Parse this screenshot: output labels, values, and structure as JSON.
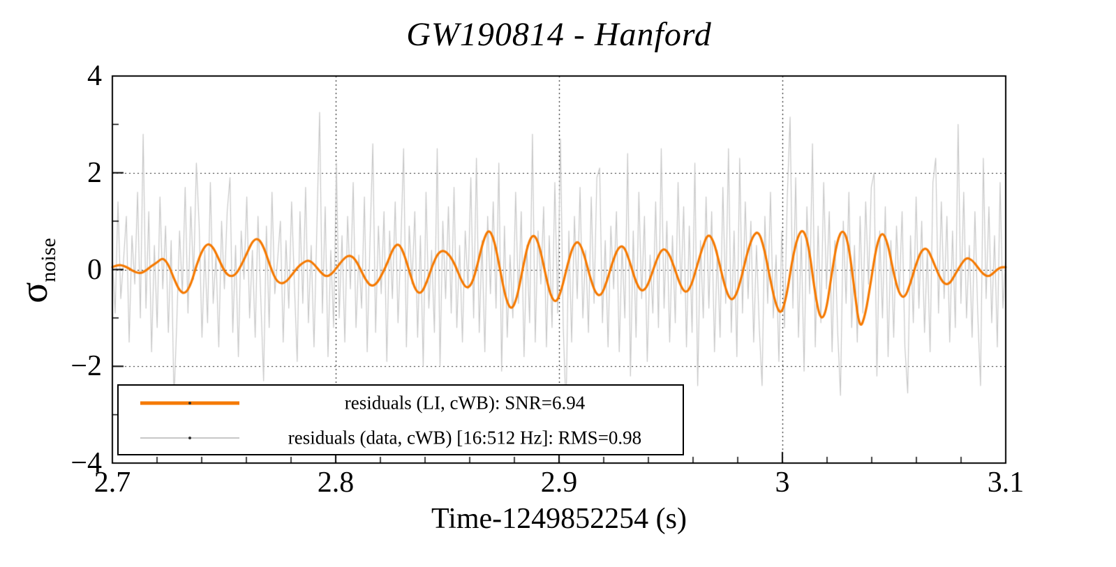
{
  "title": "GW190814 - Hanford",
  "colors": {
    "li_residuals": "#f57900",
    "data_residuals": "#c7c7c7",
    "grid": "#222222",
    "axis": "#000000",
    "background": "#ffffff",
    "legend_marker": "#333333"
  },
  "chart_data": {
    "type": "line",
    "title": "GW190814 - Hanford",
    "xlabel": "Time-1249852254 (s)",
    "ylabel": "σ_noise",
    "ylabel_main": "σ",
    "ylabel_sub": "noise",
    "xlim": [
      2.7,
      3.1
    ],
    "ylim": [
      -4,
      4
    ],
    "x_ticks": {
      "major": [
        2.7,
        2.8,
        2.9,
        3,
        3.1
      ],
      "labels": [
        "2.7",
        "2.8",
        "2.9",
        "3",
        "3.1"
      ],
      "minor_step": 0.02
    },
    "y_ticks": {
      "major": [
        -4,
        -2,
        0,
        2,
        4
      ],
      "labels": [
        "−4",
        "−2",
        "0",
        "2",
        "4"
      ],
      "minor_step": 1
    },
    "grid": {
      "x_at": [
        2.8,
        2.9,
        3
      ],
      "y_at": [
        -2,
        0,
        2
      ],
      "style": "dotted",
      "legend_position": "bottom-left"
    },
    "series": [
      {
        "name": "residuals (LI, cWB): SNR=6.94",
        "color": "#f57900",
        "line_width": 3.2,
        "smooth": true,
        "values": [
          0.05,
          0.1,
          0.08,
          0.02,
          -0.05,
          -0.08,
          -0.02,
          0.08,
          0.15,
          0.25,
          0.1,
          -0.2,
          -0.45,
          -0.5,
          -0.3,
          0.1,
          0.4,
          0.55,
          0.45,
          0.2,
          -0.05,
          -0.15,
          -0.1,
          0.1,
          0.35,
          0.6,
          0.65,
          0.45,
          0.1,
          -0.2,
          -0.3,
          -0.25,
          -0.1,
          0.05,
          0.15,
          0.2,
          0.1,
          -0.05,
          -0.15,
          -0.1,
          0.05,
          0.2,
          0.3,
          0.25,
          0.05,
          -0.2,
          -0.35,
          -0.3,
          -0.1,
          0.15,
          0.45,
          0.55,
          0.3,
          -0.1,
          -0.45,
          -0.5,
          -0.25,
          0.1,
          0.35,
          0.4,
          0.3,
          0.1,
          -0.2,
          -0.4,
          -0.3,
          0.1,
          0.6,
          0.85,
          0.6,
          0.0,
          -0.6,
          -0.85,
          -0.6,
          0.0,
          0.55,
          0.75,
          0.5,
          -0.05,
          -0.55,
          -0.7,
          -0.4,
          0.1,
          0.5,
          0.6,
          0.3,
          -0.15,
          -0.5,
          -0.55,
          -0.25,
          0.15,
          0.45,
          0.5,
          0.2,
          -0.2,
          -0.45,
          -0.4,
          -0.1,
          0.25,
          0.45,
          0.35,
          0.05,
          -0.3,
          -0.5,
          -0.35,
          0.05,
          0.45,
          0.75,
          0.6,
          0.15,
          -0.35,
          -0.65,
          -0.55,
          -0.15,
          0.35,
          0.7,
          0.8,
          0.45,
          -0.15,
          -0.7,
          -0.95,
          -0.55,
          0.2,
          0.7,
          0.85,
          0.45,
          -0.45,
          -1.05,
          -0.9,
          -0.1,
          0.6,
          0.85,
          0.55,
          -0.35,
          -1.25,
          -0.95,
          -0.25,
          0.5,
          0.8,
          0.55,
          -0.05,
          -0.5,
          -0.6,
          -0.3,
          0.1,
          0.4,
          0.45,
          0.2,
          -0.1,
          -0.3,
          -0.3,
          -0.1,
          0.1,
          0.25,
          0.2,
          0.05,
          -0.1,
          -0.15,
          -0.05,
          0.05,
          0.05
        ]
      },
      {
        "name": "residuals (data, cWB) [16:512 Hz]: RMS=0.98",
        "color": "#c7c7c7",
        "line_width": 1.2,
        "smooth": false,
        "values": [
          0.3,
          -0.9,
          1.4,
          -0.6,
          0.2,
          1.1,
          -1.5,
          0.7,
          -0.3,
          1.6,
          -1.0,
          2.8,
          -0.8,
          1.2,
          -1.7,
          0.5,
          -1.2,
          1.5,
          -0.4,
          0.9,
          -1.3,
          0.6,
          -2.7,
          -1.1,
          0.8,
          -0.5,
          1.7,
          -0.9,
          1.3,
          -0.2,
          2.2,
          0.9,
          -1.4,
          0.4,
          -1.1,
          1.8,
          -0.7,
          0.3,
          -1.6,
          1.0,
          -0.4,
          1.2,
          1.9,
          -1.3,
          0.5,
          -1.8,
          0.8,
          -0.2,
          1.5,
          -1.0,
          0.4,
          -1.4,
          1.1,
          -0.6,
          -2.3,
          0.9,
          -1.2,
          1.6,
          -0.5,
          0.2,
          1.0,
          -1.5,
          0.6,
          -0.8,
          1.4,
          -0.3,
          -1.9,
          1.2,
          -0.7,
          1.7,
          -1.1,
          0.5,
          -1.6,
          0.8,
          3.25,
          -0.9,
          1.3,
          -1.8,
          0.4,
          -1.2,
          2.2,
          -1.0,
          0.7,
          -1.5,
          1.1,
          -0.4,
          1.8,
          -1.2,
          0.3,
          -0.8,
          1.5,
          -1.7,
          0.6,
          2.6,
          -1.3,
          0.9,
          -0.5,
          1.2,
          -1.9,
          0.8,
          -0.6,
          1.4,
          -1.1,
          0.5,
          2.5,
          -1.6,
          0.9,
          -0.3,
          1.2,
          -1.4,
          0.7,
          -2.0,
          1.6,
          -0.8,
          0.4,
          -1.3,
          2.5,
          -2.0,
          1.0,
          -0.6,
          1.3,
          -0.9,
          1.7,
          -1.2,
          0.5,
          -1.5,
          0.8,
          -0.4,
          1.9,
          -1.0,
          2.3,
          -1.3,
          0.6,
          -1.7,
          1.1,
          -0.5,
          1.4,
          -0.8,
          2.2,
          -2.1,
          0.9,
          -1.4,
          0.3,
          -1.0,
          1.6,
          -0.7,
          1.2,
          -1.8,
          0.5,
          -1.1,
          2.8,
          -1.5,
          0.8,
          -0.3,
          1.3,
          -1.6,
          0.7,
          -1.2,
          1.8,
          -0.9,
          2.7,
          -1.2,
          -2.9,
          0.8,
          -1.5,
          1.1,
          -0.6,
          1.7,
          -1.0,
          0.4,
          -1.3,
          1.5,
          -0.7,
          1.9,
          2.1,
          -1.1,
          0.6,
          -1.6,
          0.9,
          -0.4,
          1.2,
          -1.7,
          0.5,
          -1.0,
          2.4,
          -2.2,
          0.8,
          -1.4,
          1.6,
          -0.6,
          1.1,
          -1.9,
          0.3,
          -0.9,
          1.4,
          -1.2,
          2.5,
          -0.8,
          1.0,
          -1.5,
          0.7,
          -1.1,
          1.8,
          -0.5,
          1.3,
          -1.6,
          0.9,
          -1.3,
          2.2,
          -2.4,
          0.6,
          -1.0,
          1.5,
          -0.8,
          1.2,
          -1.7,
          0.4,
          -1.4,
          1.7,
          -0.7,
          2.5,
          -1.3,
          0.8,
          -1.8,
          2.3,
          -0.9,
          1.4,
          -0.6,
          1.0,
          -1.5,
          0.5,
          -1.2,
          -2.4,
          1.1,
          -0.7,
          1.6,
          -1.0,
          0.3,
          -1.9,
          0.8,
          -1.2,
          1.5,
          3.15,
          -0.8,
          1.9,
          -1.4,
          0.7,
          -2.1,
          1.3,
          -0.5,
          2.6,
          -1.6,
          0.9,
          -1.1,
          1.8,
          -0.4,
          1.2,
          -1.7,
          0.6,
          -1.3,
          -2.6,
          1.0,
          -0.7,
          1.6,
          -1.2,
          0.5,
          -1.5,
          1.1,
          -0.9,
          1.4,
          -0.3,
          1.7,
          2.0,
          -2.2,
          0.8,
          -1.0,
          1.3,
          -1.8,
          0.6,
          -1.4,
          0.9,
          -0.5,
          1.2,
          -1.6,
          -2.55,
          0.7,
          -1.1,
          1.5,
          -0.8,
          1.0,
          -1.3,
          0.4,
          -1.7,
          1.8,
          2.3,
          -0.9,
          1.4,
          -0.6,
          1.1,
          -1.5,
          0.8,
          -1.2,
          3.0,
          -0.7,
          1.6,
          -1.0,
          0.5,
          -1.4,
          1.2,
          -0.9,
          -2.4,
          2.3,
          -0.6,
          1.3,
          -1.1,
          0.7,
          -1.6,
          1.8,
          -0.8,
          0.3
        ]
      }
    ]
  }
}
